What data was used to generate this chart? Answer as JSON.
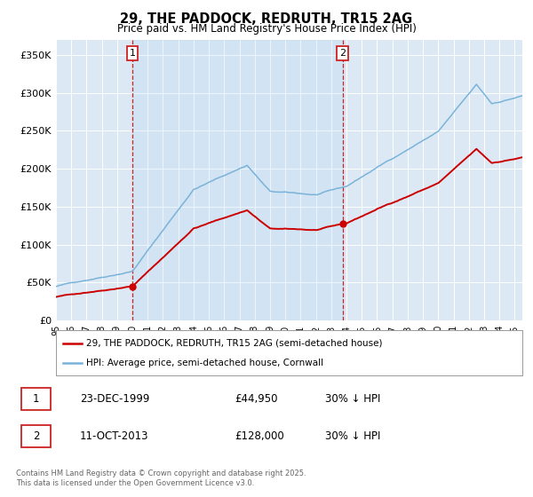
{
  "title": "29, THE PADDOCK, REDRUTH, TR15 2AG",
  "subtitle": "Price paid vs. HM Land Registry's House Price Index (HPI)",
  "bg_color": "#dce9f5",
  "grid_color": "#ffffff",
  "red_line_label": "29, THE PADDOCK, REDRUTH, TR15 2AG (semi-detached house)",
  "blue_line_label": "HPI: Average price, semi-detached house, Cornwall",
  "transaction1_date": "23-DEC-1999",
  "transaction1_price": "£44,950",
  "transaction1_note": "30% ↓ HPI",
  "transaction2_date": "11-OCT-2013",
  "transaction2_price": "£128,000",
  "transaction2_note": "30% ↓ HPI",
  "footer": "Contains HM Land Registry data © Crown copyright and database right 2025.\nThis data is licensed under the Open Government Licence v3.0.",
  "ylim": [
    0,
    370000
  ],
  "yticks": [
    0,
    50000,
    100000,
    150000,
    200000,
    250000,
    300000,
    350000
  ],
  "ytick_labels": [
    "£0",
    "£50K",
    "£100K",
    "£150K",
    "£200K",
    "£250K",
    "£300K",
    "£350K"
  ],
  "transaction1_year": 1999.97,
  "transaction2_year": 2013.78,
  "transaction1_value": 44950,
  "transaction2_value": 128000,
  "xlim_start": 1995,
  "xlim_end": 2025.5
}
